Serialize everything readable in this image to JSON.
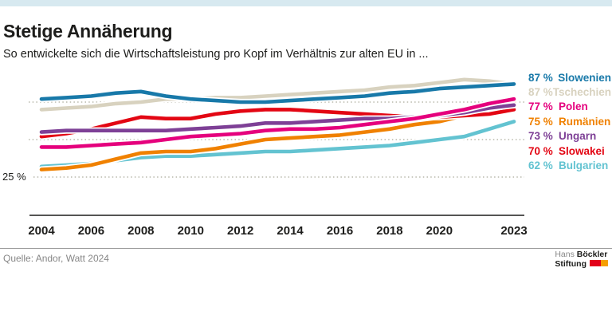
{
  "header": {
    "title": "Stetige Annäherung",
    "subtitle": "So entwickelte sich die Wirtschaftsleistung pro Kopf im Verhältnis zur alten EU in ..."
  },
  "chart_data": {
    "type": "line",
    "x_label": "",
    "y_label": "",
    "x": [
      2004,
      2005,
      2006,
      2007,
      2008,
      2009,
      2010,
      2011,
      2012,
      2013,
      2014,
      2015,
      2016,
      2017,
      2018,
      2019,
      2020,
      2021,
      2022,
      2023
    ],
    "x_tick_years": [
      2004,
      2006,
      2008,
      2010,
      2012,
      2014,
      2016,
      2018,
      2020,
      2023
    ],
    "x_tick_labels": [
      "2004",
      "2006",
      "2008",
      "2010",
      "2012",
      "2014",
      "2016",
      "2018",
      "2020",
      "2023"
    ],
    "gridlines": [
      {
        "percent": 25,
        "label": "25 %"
      },
      {
        "percent": 50,
        "label": ""
      },
      {
        "percent": 75,
        "label": ""
      }
    ],
    "ylim": [
      20,
      95
    ],
    "legend_position": "right",
    "grid": "dotted-horizontal",
    "series": [
      {
        "key": "slowenien",
        "name": "Slowenien",
        "end_value_label": "87 %",
        "color": "#1879a9",
        "values": [
          77,
          78,
          79,
          81,
          82,
          79,
          77,
          76,
          75,
          75,
          76,
          77,
          78,
          79,
          81,
          82,
          84,
          85,
          86,
          87
        ]
      },
      {
        "key": "tschechien",
        "name": "Tschechien",
        "end_value_label": "87 %",
        "color": "#d8d2bf",
        "values": [
          70,
          71,
          72,
          74,
          75,
          77,
          77,
          78,
          78,
          79,
          80,
          81,
          82,
          83,
          85,
          86,
          88,
          90,
          89,
          87
        ]
      },
      {
        "key": "polen",
        "name": "Polen",
        "end_value_label": "77 %",
        "color": "#e5007d",
        "values": [
          45,
          45,
          46,
          47,
          48,
          50,
          52,
          53,
          54,
          56,
          57,
          57,
          58,
          60,
          62,
          64,
          67,
          70,
          74,
          77
        ]
      },
      {
        "key": "rumaenien",
        "name": "Rumänien",
        "end_value_label": "75 %",
        "color": "#f08100",
        "values": [
          30,
          31,
          33,
          37,
          41,
          42,
          42,
          44,
          47,
          50,
          51,
          52,
          53,
          55,
          57,
          60,
          62,
          66,
          71,
          75
        ]
      },
      {
        "key": "ungarn",
        "name": "Ungarn",
        "end_value_label": "73 %",
        "color": "#7e4096",
        "values": [
          55,
          56,
          56,
          56,
          56,
          56,
          57,
          58,
          59,
          61,
          61,
          62,
          63,
          64,
          64,
          65,
          66,
          68,
          71,
          73
        ]
      },
      {
        "key": "slowakei",
        "name": "Slowakei",
        "end_value_label": "70 %",
        "color": "#e30613",
        "values": [
          52,
          54,
          57,
          61,
          65,
          64,
          64,
          67,
          69,
          70,
          70,
          69,
          68,
          67,
          66,
          65,
          65,
          66,
          67,
          70
        ]
      },
      {
        "key": "bulgarien",
        "name": "Bulgarien",
        "end_value_label": "62 %",
        "color": "#63c3d1",
        "values": [
          32,
          33,
          34,
          36,
          38,
          39,
          39,
          40,
          41,
          42,
          42,
          43,
          44,
          45,
          46,
          48,
          50,
          52,
          57,
          62
        ]
      }
    ],
    "draw_order": [
      "tschechien",
      "bulgarien",
      "rumaenien",
      "slowakei",
      "ungarn",
      "polen",
      "slowenien"
    ]
  },
  "footer": {
    "source": "Quelle: Andor, Watt 2024",
    "logo": {
      "hans": "Hans",
      "boeckler": "Böckler",
      "stiftung": "Stiftung"
    }
  }
}
